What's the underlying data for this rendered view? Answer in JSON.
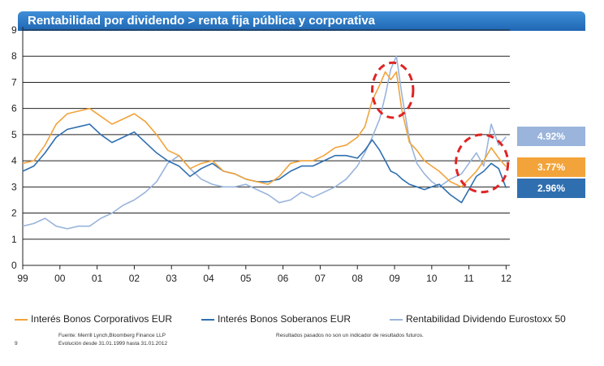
{
  "title": "Rentabilidad por dividendo > renta fija pública y corporativa",
  "chart_data": {
    "type": "line",
    "title": "Rentabilidad por dividendo > renta fija pública y corporativa",
    "xlabel": "",
    "ylabel": "",
    "x_range": [
      1999.0,
      2012.1
    ],
    "ylim": [
      0,
      9
    ],
    "yticks": [
      0,
      1,
      2,
      3,
      4,
      5,
      6,
      7,
      8,
      9
    ],
    "xtick_labels": [
      "99",
      "00",
      "01",
      "02",
      "03",
      "04",
      "05",
      "06",
      "07",
      "08",
      "09",
      "10",
      "11",
      "12"
    ],
    "xtick_years": [
      1999,
      2000,
      2001,
      2002,
      2003,
      2004,
      2005,
      2006,
      2007,
      2008,
      2009,
      2010,
      2011,
      2012
    ],
    "grid": true,
    "series": [
      {
        "name": "Interés Bonos Corporativos EUR",
        "color": "#f2a33a",
        "x": [
          1999.0,
          1999.3,
          1999.6,
          1999.9,
          2000.2,
          2000.5,
          2000.8,
          2001.1,
          2001.4,
          2001.7,
          2002.0,
          2002.3,
          2002.6,
          2002.9,
          2003.2,
          2003.5,
          2003.8,
          2004.1,
          2004.4,
          2004.7,
          2005.0,
          2005.3,
          2005.6,
          2005.9,
          2006.2,
          2006.5,
          2006.8,
          2007.1,
          2007.4,
          2007.7,
          2008.0,
          2008.2,
          2008.4,
          2008.6,
          2008.75,
          2008.9,
          2009.05,
          2009.2,
          2009.4,
          2009.6,
          2009.8,
          2010.0,
          2010.2,
          2010.5,
          2010.8,
          2011.0,
          2011.2,
          2011.4,
          2011.6,
          2011.8,
          2012.0
        ],
        "y": [
          3.9,
          4.0,
          4.6,
          5.4,
          5.8,
          5.9,
          6.0,
          5.7,
          5.4,
          5.6,
          5.8,
          5.5,
          5.0,
          4.4,
          4.2,
          3.7,
          3.9,
          4.0,
          3.6,
          3.5,
          3.3,
          3.2,
          3.1,
          3.4,
          3.9,
          4.0,
          4.0,
          4.2,
          4.5,
          4.6,
          4.9,
          5.3,
          6.3,
          6.9,
          7.4,
          7.1,
          7.4,
          5.9,
          4.7,
          4.4,
          4.0,
          3.8,
          3.6,
          3.2,
          3.0,
          3.3,
          3.6,
          4.0,
          4.5,
          4.1,
          3.77
        ]
      },
      {
        "name": "Interés Bonos Soberanos EUR",
        "color": "#2f6fb0",
        "x": [
          1999.0,
          1999.3,
          1999.6,
          1999.9,
          2000.2,
          2000.5,
          2000.8,
          2001.1,
          2001.4,
          2001.7,
          2002.0,
          2002.3,
          2002.6,
          2002.9,
          2003.2,
          2003.5,
          2003.8,
          2004.1,
          2004.4,
          2004.7,
          2005.0,
          2005.3,
          2005.6,
          2005.9,
          2006.2,
          2006.5,
          2006.8,
          2007.1,
          2007.4,
          2007.7,
          2008.0,
          2008.2,
          2008.4,
          2008.6,
          2008.75,
          2008.9,
          2009.05,
          2009.2,
          2009.4,
          2009.6,
          2009.8,
          2010.0,
          2010.2,
          2010.5,
          2010.8,
          2011.0,
          2011.2,
          2011.4,
          2011.6,
          2011.8,
          2012.0
        ],
        "y": [
          3.6,
          3.8,
          4.3,
          4.9,
          5.2,
          5.3,
          5.4,
          5.0,
          4.7,
          4.9,
          5.1,
          4.7,
          4.3,
          4.0,
          3.8,
          3.4,
          3.7,
          3.9,
          3.6,
          3.5,
          3.3,
          3.2,
          3.2,
          3.3,
          3.6,
          3.8,
          3.8,
          4.0,
          4.2,
          4.2,
          4.1,
          4.4,
          4.8,
          4.4,
          4.0,
          3.6,
          3.5,
          3.3,
          3.1,
          3.0,
          2.9,
          3.0,
          3.1,
          2.7,
          2.4,
          2.9,
          3.4,
          3.6,
          3.9,
          3.7,
          2.96
        ]
      },
      {
        "name": "Rentabilidad Dividendo Eurostoxx 50",
        "color": "#9ab4dc",
        "x": [
          1999.0,
          1999.3,
          1999.6,
          1999.9,
          2000.2,
          2000.5,
          2000.8,
          2001.1,
          2001.4,
          2001.7,
          2002.0,
          2002.3,
          2002.6,
          2002.9,
          2003.2,
          2003.5,
          2003.8,
          2004.1,
          2004.4,
          2004.7,
          2005.0,
          2005.3,
          2005.6,
          2005.9,
          2006.2,
          2006.5,
          2006.8,
          2007.1,
          2007.4,
          2007.7,
          2008.0,
          2008.2,
          2008.4,
          2008.6,
          2008.75,
          2008.9,
          2009.05,
          2009.2,
          2009.4,
          2009.6,
          2009.8,
          2010.0,
          2010.2,
          2010.5,
          2010.8,
          2011.0,
          2011.2,
          2011.4,
          2011.6,
          2011.8,
          2012.0
        ],
        "y": [
          1.5,
          1.6,
          1.8,
          1.5,
          1.4,
          1.5,
          1.5,
          1.8,
          2.0,
          2.3,
          2.5,
          2.8,
          3.2,
          3.9,
          4.2,
          3.7,
          3.3,
          3.1,
          3.0,
          3.0,
          3.1,
          2.9,
          2.7,
          2.4,
          2.5,
          2.8,
          2.6,
          2.8,
          3.0,
          3.3,
          3.8,
          4.3,
          4.9,
          5.6,
          6.5,
          7.5,
          8.0,
          6.5,
          4.8,
          3.9,
          3.5,
          3.2,
          3.0,
          3.3,
          3.5,
          3.9,
          4.3,
          3.8,
          5.4,
          4.6,
          4.92
        ]
      }
    ],
    "end_labels": [
      {
        "text": "4.92%",
        "value": 4.92,
        "color": "#9ab4dc"
      },
      {
        "text": "3.77%",
        "value": 3.77,
        "color": "#f2a33a"
      },
      {
        "text": "2.96%",
        "value": 2.96,
        "color": "#2f6fb0"
      }
    ],
    "annotations": [
      {
        "shape": "dashed-ellipse",
        "color": "#e02424",
        "center_x": 2008.95,
        "center_y": 6.7,
        "radius_years": 0.55,
        "radius_y": 1.05
      },
      {
        "shape": "dashed-ellipse",
        "color": "#e02424",
        "center_x": 2011.35,
        "center_y": 3.9,
        "radius_years": 0.7,
        "radius_y": 1.1
      }
    ]
  },
  "legend": [
    {
      "label": "Interés Bonos Corporativos EUR",
      "color": "#f2a33a"
    },
    {
      "label": "Interés Bonos Soberanos EUR",
      "color": "#2f6fb0"
    },
    {
      "label": "Rentabilidad Dividendo Eurostoxx 50",
      "color": "#9ab4dc"
    }
  ],
  "footer": {
    "source_line1": "Fuente: Merrill Lynch,Bloomberg  Finance LLP",
    "source_line2": "Evolución  desde  31.01.1999 hasta  31.01.2012",
    "disclaimer": "Resultados  pasados  no son  un indicador  de resultados  futuros.",
    "page_number": "9"
  }
}
